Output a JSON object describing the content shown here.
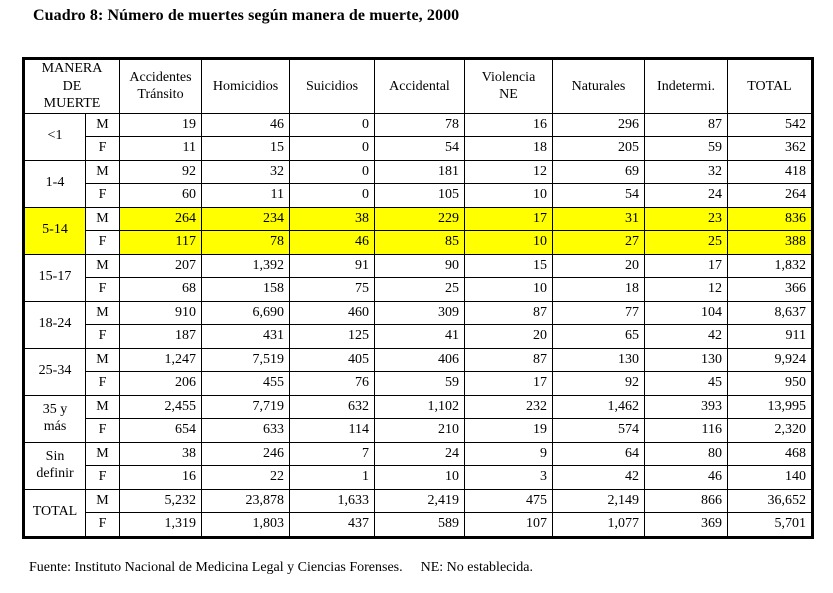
{
  "title": "Cuadro 8: Número de muertes según manera de muerte, 2000",
  "table": {
    "corner_header": "MANERA\nDE\nMUERTE",
    "column_headers": [
      "Accidentes\nTránsito",
      "Homicidios",
      "Suicidios",
      "Accidental",
      "Violencia\nNE",
      "Naturales",
      "Indetermi.",
      "TOTAL"
    ],
    "highlight_color": "#FFFF00",
    "groups": [
      {
        "label": "<1",
        "highlight": false,
        "rows": [
          {
            "sex": "M",
            "values": [
              "19",
              "46",
              "0",
              "78",
              "16",
              "296",
              "87",
              "542"
            ]
          },
          {
            "sex": "F",
            "values": [
              "11",
              "15",
              "0",
              "54",
              "18",
              "205",
              "59",
              "362"
            ]
          }
        ]
      },
      {
        "label": "1-4",
        "highlight": false,
        "rows": [
          {
            "sex": "M",
            "values": [
              "92",
              "32",
              "0",
              "181",
              "12",
              "69",
              "32",
              "418"
            ]
          },
          {
            "sex": "F",
            "values": [
              "60",
              "11",
              "0",
              "105",
              "10",
              "54",
              "24",
              "264"
            ]
          }
        ]
      },
      {
        "label": "5-14",
        "highlight": true,
        "rows": [
          {
            "sex": "M",
            "values": [
              "264",
              "234",
              "38",
              "229",
              "17",
              "31",
              "23",
              "836"
            ]
          },
          {
            "sex": "F",
            "values": [
              "117",
              "78",
              "46",
              "85",
              "10",
              "27",
              "25",
              "388"
            ]
          }
        ]
      },
      {
        "label": "15-17",
        "highlight": false,
        "rows": [
          {
            "sex": "M",
            "values": [
              "207",
              "1,392",
              "91",
              "90",
              "15",
              "20",
              "17",
              "1,832"
            ]
          },
          {
            "sex": "F",
            "values": [
              "68",
              "158",
              "75",
              "25",
              "10",
              "18",
              "12",
              "366"
            ]
          }
        ]
      },
      {
        "label": "18-24",
        "highlight": false,
        "rows": [
          {
            "sex": "M",
            "values": [
              "910",
              "6,690",
              "460",
              "309",
              "87",
              "77",
              "104",
              "8,637"
            ]
          },
          {
            "sex": "F",
            "values": [
              "187",
              "431",
              "125",
              "41",
              "20",
              "65",
              "42",
              "911"
            ]
          }
        ]
      },
      {
        "label": "25-34",
        "highlight": false,
        "rows": [
          {
            "sex": "M",
            "values": [
              "1,247",
              "7,519",
              "405",
              "406",
              "87",
              "130",
              "130",
              "9,924"
            ]
          },
          {
            "sex": "F",
            "values": [
              "206",
              "455",
              "76",
              "59",
              "17",
              "92",
              "45",
              "950"
            ]
          }
        ]
      },
      {
        "label": "35 y\nmás",
        "highlight": false,
        "rows": [
          {
            "sex": "M",
            "values": [
              "2,455",
              "7,719",
              "632",
              "1,102",
              "232",
              "1,462",
              "393",
              "13,995"
            ]
          },
          {
            "sex": "F",
            "values": [
              "654",
              "633",
              "114",
              "210",
              "19",
              "574",
              "116",
              "2,320"
            ]
          }
        ]
      },
      {
        "label": "Sin\ndefinir",
        "highlight": false,
        "rows": [
          {
            "sex": "M",
            "values": [
              "38",
              "246",
              "7",
              "24",
              "9",
              "64",
              "80",
              "468"
            ]
          },
          {
            "sex": "F",
            "values": [
              "16",
              "22",
              "1",
              "10",
              "3",
              "42",
              "46",
              "140"
            ]
          }
        ]
      },
      {
        "label": "TOTAL",
        "highlight": false,
        "rows": [
          {
            "sex": "M",
            "values": [
              "5,232",
              "23,878",
              "1,633",
              "2,419",
              "475",
              "2,149",
              "866",
              "36,652"
            ]
          },
          {
            "sex": "F",
            "values": [
              "1,319",
              "1,803",
              "437",
              "589",
              "107",
              "1,077",
              "369",
              "5,701"
            ]
          }
        ]
      }
    ]
  },
  "footer": {
    "source": "Fuente: Instituto Nacional de Medicina Legal y Ciencias Forenses.",
    "note": "NE: No establecida."
  }
}
